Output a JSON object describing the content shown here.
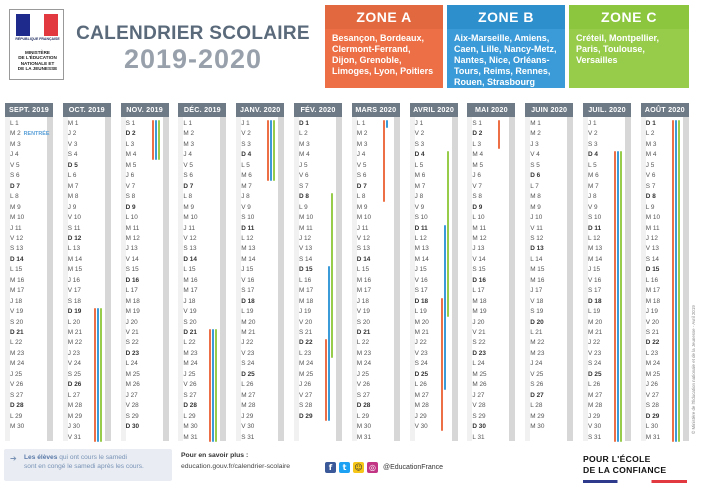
{
  "logo": {
    "republique": "RÉPUBLIQUE FRANÇAISE",
    "ministere": [
      "MINISTÈRE",
      "DE L'ÉDUCATION",
      "NATIONALE ET",
      "DE LA JEUNESSE"
    ],
    "flag_colors": [
      "#1e2b8c",
      "#ffffff",
      "#e2383f"
    ]
  },
  "title": {
    "line1": "CALENDRIER SCOLAIRE",
    "line2": "2019-2020"
  },
  "zones": [
    {
      "name": "ZONE A",
      "color": "#ec6f45",
      "cities": "Besançon, Bordeaux, Clermont-Ferrand, Dijon, Grenoble, Limoges, Lyon, Poitiers"
    },
    {
      "name": "ZONE B",
      "color": "#3a9bd8",
      "cities": "Aix-Marseille, Amiens, Caen, Lille, Nancy-Metz, Nantes, Nice, Orléans-Tours, Reims, Rennes, Rouen, Strasbourg"
    },
    {
      "name": "ZONE C",
      "color": "#97cc4a",
      "cities": "Créteil, Montpellier, Paris, Toulouse, Versailles"
    }
  ],
  "rentree_label": "RENTRÉE",
  "months": [
    {
      "label": "SEPT. 2019",
      "start": 0,
      "days": 30,
      "rentree_day": 2
    },
    {
      "label": "OCT. 2019",
      "start": 2,
      "days": 31
    },
    {
      "label": "NOV. 2019",
      "start": 5,
      "days": 30
    },
    {
      "label": "DÉC. 2019",
      "start": 0,
      "days": 31
    },
    {
      "label": "JANV. 2020",
      "start": 3,
      "days": 31
    },
    {
      "label": "FÉV. 2020",
      "start": 6,
      "days": 29
    },
    {
      "label": "MARS 2020",
      "start": 0,
      "days": 31
    },
    {
      "label": "AVRIL 2020",
      "start": 3,
      "days": 30
    },
    {
      "label": "MAI 2020",
      "start": 5,
      "days": 31
    },
    {
      "label": "JUIN 2020",
      "start": 1,
      "days": 30
    },
    {
      "label": "JUIL. 2020",
      "start": 3,
      "days": 31
    },
    {
      "label": "AOÛT 2020",
      "start": 6,
      "days": 31
    }
  ],
  "weekday_letters": [
    "L",
    "M",
    "M",
    "J",
    "V",
    "S",
    "D"
  ],
  "holidays": [
    {
      "month": 1,
      "zones": [
        "A",
        "B",
        "C"
      ],
      "from": 19,
      "to": 31
    },
    {
      "month": 2,
      "zones": [
        "A",
        "B",
        "C"
      ],
      "from": 1,
      "to": 4
    },
    {
      "month": 3,
      "zones": [
        "A",
        "B",
        "C"
      ],
      "from": 21,
      "to": 31
    },
    {
      "month": 4,
      "zones": [
        "A",
        "B",
        "C"
      ],
      "from": 1,
      "to": 6
    },
    {
      "month": 5,
      "zones": [
        "C"
      ],
      "from": 8,
      "to": 23
    },
    {
      "month": 5,
      "zones": [
        "B"
      ],
      "from": 15,
      "to": 29
    },
    {
      "month": 5,
      "zones": [
        "A"
      ],
      "from": 22,
      "to": 29
    },
    {
      "month": 6,
      "zones": [
        "A"
      ],
      "from": 1,
      "to": 8
    },
    {
      "month": 6,
      "zones": [
        "B"
      ],
      "from": 1,
      "to": 1
    },
    {
      "month": 7,
      "zones": [
        "C"
      ],
      "from": 4,
      "to": 19
    },
    {
      "month": 7,
      "zones": [
        "B"
      ],
      "from": 11,
      "to": 26
    },
    {
      "month": 7,
      "zones": [
        "A"
      ],
      "from": 18,
      "to": 30
    },
    {
      "month": 8,
      "zones": [
        "A"
      ],
      "from": 1,
      "to": 3
    },
    {
      "month": 10,
      "zones": [
        "A",
        "B",
        "C"
      ],
      "from": 4,
      "to": 31
    },
    {
      "month": 11,
      "zones": [
        "A",
        "B",
        "C"
      ],
      "from": 1,
      "to": 31
    }
  ],
  "footer": {
    "note_bold": "Les élèves",
    "note_rest": " qui ont cours le samedi",
    "note_line2": "sont en congé le samedi après les cours.",
    "more_title": "Pour en savoir plus :",
    "more_url": "education.gouv.fr/calendrier-scolaire",
    "social_handle": "@EducationFrance",
    "slogan_line1": "POUR L'ÉCOLE",
    "slogan_line2": "DE LA CONFIANCE",
    "credit": "© Ministère de l'Éducation nationale et de la Jeunesse - Avril 2019"
  }
}
